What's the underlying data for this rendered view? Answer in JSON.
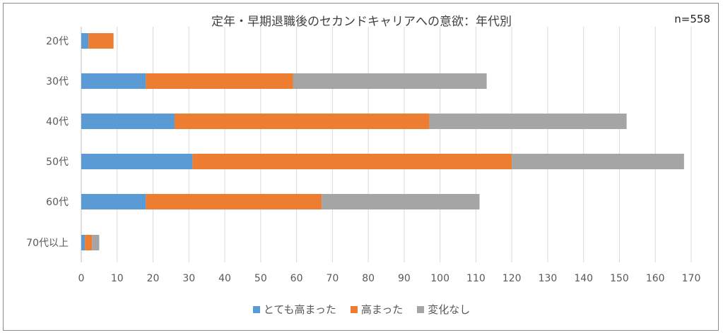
{
  "chart_data": {
    "type": "bar",
    "orientation": "horizontal",
    "stacked": true,
    "title": "定年・早期退職後のセカンドキャリアへの意欲：年代別",
    "annotation": "n=558",
    "categories": [
      "20代",
      "30代",
      "40代",
      "50代",
      "60代",
      "70代以上"
    ],
    "series": [
      {
        "name": "とても高まった",
        "color": "#5b9bd5",
        "values": [
          2,
          18,
          26,
          31,
          18,
          1
        ]
      },
      {
        "name": "高まった",
        "color": "#ed7d31",
        "values": [
          7,
          41,
          71,
          89,
          49,
          2
        ]
      },
      {
        "name": "変化なし",
        "color": "#a5a5a5",
        "values": [
          0,
          54,
          55,
          48,
          44,
          2
        ]
      }
    ],
    "xlim": [
      0,
      170
    ],
    "xticks": [
      "0",
      "10",
      "20",
      "30",
      "40",
      "50",
      "60",
      "70",
      "80",
      "90",
      "100",
      "110",
      "120",
      "130",
      "140",
      "150",
      "160",
      "170"
    ],
    "grid": "vertical",
    "legend_position": "bottom"
  }
}
